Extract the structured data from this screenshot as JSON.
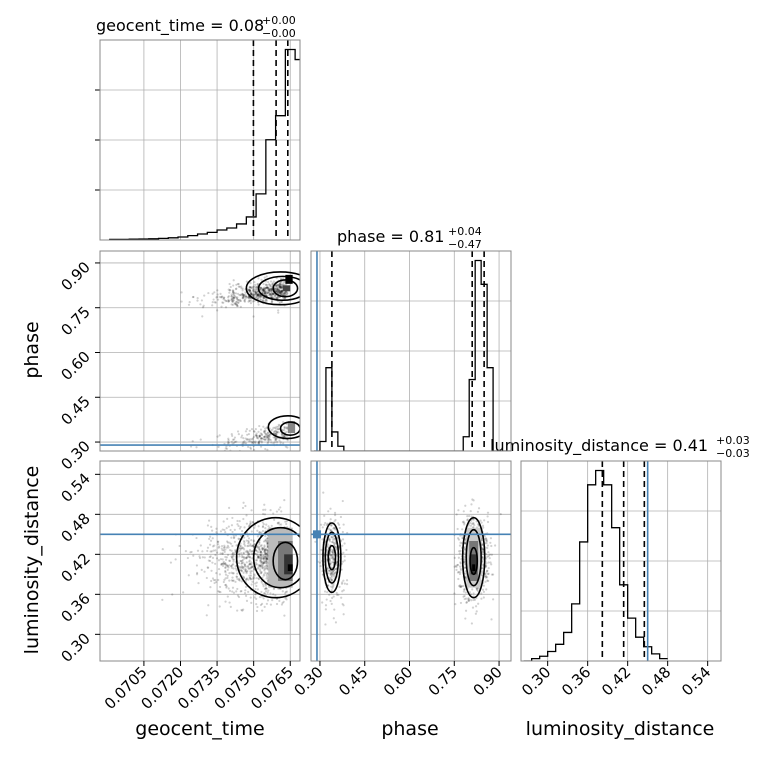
{
  "chart_data": {
    "type": "corner",
    "truth_color": "#4682b4",
    "titles": {
      "geocent_time": {
        "name": "geocent_time",
        "median": "0.08",
        "plus": "+0.00",
        "minus": "−0.00"
      },
      "phase": {
        "name": "phase",
        "median": "0.81",
        "plus": "+0.04",
        "minus": "−0.47"
      },
      "luminosity_distance": {
        "name": "luminosity_distance",
        "median": "0.41",
        "plus": "+0.03",
        "minus": "−0.03"
      }
    },
    "axis_labels": {
      "x": [
        "geocent_time",
        "phase",
        "luminosity_distance"
      ],
      "y": [
        "phase",
        "luminosity_distance"
      ]
    },
    "ticks": {
      "geocent_time": [
        "0.0705",
        "0.0720",
        "0.0735",
        "0.0750",
        "0.0765"
      ],
      "phase": [
        "0.30",
        "0.45",
        "0.60",
        "0.75",
        "0.90"
      ],
      "luminosity_distance": [
        "0.30",
        "0.36",
        "0.42",
        "0.48",
        "0.54"
      ]
    },
    "ranges": {
      "geocent_time": [
        0.0687,
        0.0769
      ],
      "phase": [
        0.27,
        0.94
      ],
      "luminosity_distance": [
        0.26,
        0.56
      ]
    },
    "truths": {
      "phase": 0.29,
      "luminosity_distance": 0.45
    },
    "quantiles": {
      "geocent_time": [
        0.07499,
        0.07592,
        0.0764
      ],
      "phase": [
        0.34,
        0.81,
        0.85
      ],
      "luminosity_distance": [
        0.382,
        0.414,
        0.445
      ]
    },
    "hist": {
      "geocent_time": {
        "edges_start": 0.0691,
        "bin_width": 0.0004,
        "counts": [
          0.3,
          0.3,
          0.4,
          0.5,
          0.6,
          0.8,
          1.1,
          1.5,
          2.2,
          3,
          3.8,
          5,
          6,
          8,
          11.5,
          23,
          50,
          62,
          95,
          90,
          0
        ]
      },
      "phase": {
        "edges_start": 0.28,
        "bin_width": 0.02,
        "counts": [
          0,
          4,
          35,
          8,
          2,
          0,
          0,
          0,
          0,
          0,
          0,
          0,
          0,
          0,
          0,
          0,
          0,
          0,
          0,
          0,
          0,
          0,
          0,
          0,
          0,
          6,
          30,
          80,
          70,
          35,
          0,
          0,
          0
        ]
      },
      "luminosity_distance": {
        "edges_start": 0.264,
        "bin_width": 0.012,
        "counts": [
          0,
          0.5,
          1,
          2,
          3.5,
          6,
          12,
          25,
          37,
          40,
          37,
          28,
          16,
          9,
          5,
          3,
          1.5,
          0.5
        ]
      }
    }
  }
}
